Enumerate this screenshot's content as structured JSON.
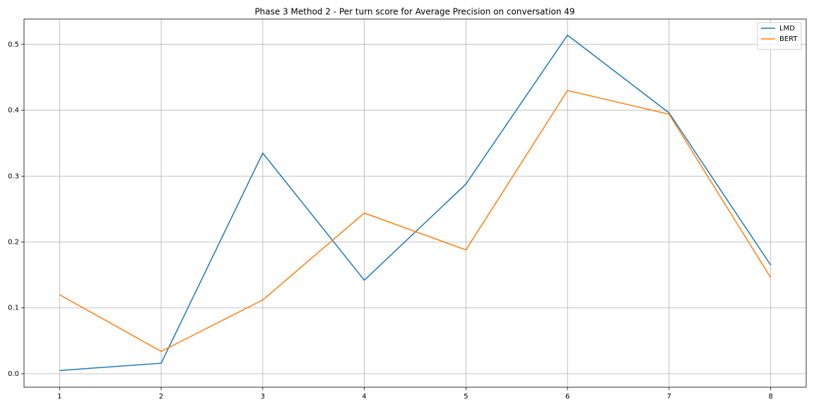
{
  "chart_data": {
    "type": "line",
    "title": "Phase 3 Method 2 - Per turn score for Average Precision on conversation 49",
    "x": [
      1,
      2,
      3,
      4,
      5,
      6,
      7,
      8
    ],
    "series": [
      {
        "name": "LMD",
        "color": "#1f77b4",
        "values": [
          0.005,
          0.016,
          0.335,
          0.142,
          0.288,
          0.514,
          0.396,
          0.165
        ]
      },
      {
        "name": "BERT",
        "color": "#ff7f0e",
        "values": [
          0.12,
          0.034,
          0.112,
          0.244,
          0.188,
          0.43,
          0.394,
          0.146
        ]
      }
    ],
    "xlim": [
      0.65,
      8.35
    ],
    "xticks": [
      1,
      2,
      3,
      4,
      5,
      6,
      7,
      8
    ],
    "ylim": [
      -0.0204,
      0.5384
    ],
    "yticks": [
      {
        "value": 0,
        "label": "0.0"
      },
      0.1,
      0.2,
      0.3,
      0.4,
      0.5
    ],
    "grid": true,
    "legend": "upper right"
  }
}
